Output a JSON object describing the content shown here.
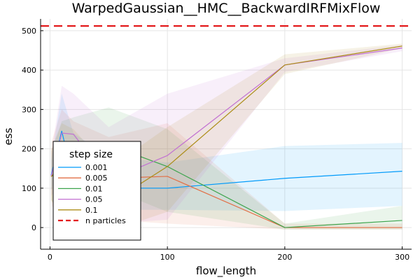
{
  "chart_data": {
    "type": "line",
    "title": "WarpedGaussian__HMC__BackwardIRFMixFlow",
    "xlabel": "flow_length",
    "ylabel": "ess",
    "xlim": [
      -8,
      308
    ],
    "ylim": [
      -55,
      530
    ],
    "xticks": [
      0,
      100,
      200,
      300
    ],
    "yticks": [
      0,
      100,
      200,
      300,
      400,
      500
    ],
    "grid": true,
    "legend": {
      "title": "step size",
      "placement": "bottom-left"
    },
    "reference_line": {
      "name": "n particles",
      "value": 512,
      "color": "#e31a1c",
      "style": "dashed"
    },
    "x": [
      1,
      10,
      20,
      50,
      100,
      200,
      300
    ],
    "series": [
      {
        "name": "0.001",
        "color": "#009afa",
        "values": [
          133,
          245,
          120,
          100,
          100,
          125,
          143
        ],
        "lower": [
          95,
          160,
          60,
          45,
          45,
          42,
          55
        ],
        "upper": [
          170,
          340,
          240,
          180,
          165,
          207,
          215
        ]
      },
      {
        "name": "0.005",
        "color": "#e26f46",
        "values": [
          130,
          160,
          135,
          125,
          130,
          0,
          0
        ],
        "lower": [
          60,
          5,
          -5,
          20,
          10,
          -5,
          -5
        ],
        "upper": [
          215,
          300,
          270,
          230,
          265,
          10,
          10
        ]
      },
      {
        "name": "0.01",
        "color": "#3da44d",
        "values": [
          130,
          150,
          200,
          210,
          155,
          0,
          18
        ],
        "lower": [
          70,
          30,
          95,
          100,
          40,
          -5,
          -5
        ],
        "upper": [
          195,
          270,
          280,
          305,
          250,
          10,
          55
        ]
      },
      {
        "name": "0.05",
        "color": "#c271d2",
        "values": [
          130,
          240,
          237,
          120,
          183,
          413,
          456
        ],
        "lower": [
          80,
          120,
          110,
          10,
          20,
          395,
          448
        ],
        "upper": [
          190,
          360,
          340,
          255,
          340,
          430,
          464
        ]
      },
      {
        "name": "0.1",
        "color": "#ac8d18",
        "values": [
          130,
          140,
          120,
          60,
          155,
          413,
          461
        ],
        "lower": [
          70,
          20,
          0,
          -10,
          40,
          390,
          455
        ],
        "upper": [
          195,
          265,
          250,
          150,
          255,
          440,
          467
        ]
      }
    ]
  }
}
